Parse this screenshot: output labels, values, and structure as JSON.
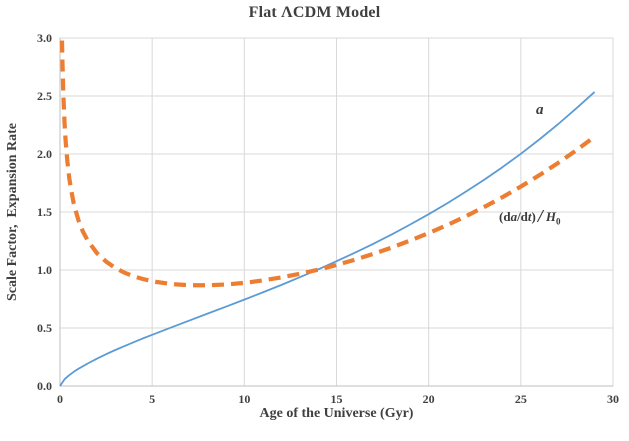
{
  "page": {
    "background": "#FFFFFF"
  },
  "chart_data": {
    "type": "line",
    "title": "Flat ΛCDM Model",
    "xlabel": "Age of the Universe (Gyr)",
    "ylabel": "Scale Factor,  Expansion Rate",
    "xlim": [
      0,
      30
    ],
    "ylim": [
      0,
      3
    ],
    "grid": true,
    "legend": "none",
    "colors": {
      "grid": "#D9D9D9",
      "axis": "#BFBFBF",
      "text": "#404040"
    },
    "x_ticks": [
      {
        "v": 0,
        "label": "0"
      },
      {
        "v": 5,
        "label": "5"
      },
      {
        "v": 10,
        "label": "10"
      },
      {
        "v": 15,
        "label": "15"
      },
      {
        "v": 20,
        "label": "20"
      },
      {
        "v": 25,
        "label": "25"
      },
      {
        "v": 30,
        "label": "30"
      }
    ],
    "y_ticks": [
      {
        "v": 0.0,
        "label": "0.0"
      },
      {
        "v": 0.5,
        "label": "0.5"
      },
      {
        "v": 1.0,
        "label": "1.0"
      },
      {
        "v": 1.5,
        "label": "1.5"
      },
      {
        "v": 2.0,
        "label": "2.0"
      },
      {
        "v": 2.5,
        "label": "2.5"
      },
      {
        "v": 3.0,
        "label": "3.0"
      }
    ],
    "series": [
      {
        "name": "a",
        "color": "#5B9BD5",
        "line_style": "solid",
        "points": [
          [
            0,
            0
          ],
          [
            0.25,
            0.059
          ],
          [
            0.5,
            0.093
          ],
          [
            0.75,
            0.122
          ],
          [
            1,
            0.148
          ],
          [
            1.5,
            0.194
          ],
          [
            2,
            0.235
          ],
          [
            2.5,
            0.274
          ],
          [
            3,
            0.31
          ],
          [
            3.5,
            0.344
          ],
          [
            4,
            0.378
          ],
          [
            4.5,
            0.41
          ],
          [
            5,
            0.441
          ],
          [
            6,
            0.503
          ],
          [
            7,
            0.563
          ],
          [
            8,
            0.624
          ],
          [
            9,
            0.684
          ],
          [
            10,
            0.745
          ],
          [
            11,
            0.807
          ],
          [
            12,
            0.871
          ],
          [
            13,
            0.937
          ],
          [
            14,
            1.005
          ],
          [
            15,
            1.076
          ],
          [
            16,
            1.149
          ],
          [
            17,
            1.226
          ],
          [
            18,
            1.307
          ],
          [
            19,
            1.392
          ],
          [
            20,
            1.481
          ],
          [
            21,
            1.574
          ],
          [
            22,
            1.673
          ],
          [
            23,
            1.777
          ],
          [
            24,
            1.886
          ],
          [
            25,
            2.002
          ],
          [
            26,
            2.125
          ],
          [
            27,
            2.254
          ],
          [
            28,
            2.391
          ],
          [
            29,
            2.535
          ]
        ]
      },
      {
        "name": "(da/dt) / H0",
        "color": "#ED7D31",
        "line_style": "dashed",
        "points": [
          [
            0.11,
            2.978
          ],
          [
            0.13,
            2.815
          ],
          [
            0.15,
            2.684
          ],
          [
            0.175,
            2.547
          ],
          [
            0.2,
            2.437
          ],
          [
            0.25,
            2.261
          ],
          [
            0.3,
            2.128
          ],
          [
            0.35,
            2.022
          ],
          [
            0.4,
            1.934
          ],
          [
            0.5,
            1.796
          ],
          [
            0.6,
            1.692
          ],
          [
            0.75,
            1.571
          ],
          [
            1,
            1.429
          ],
          [
            1.25,
            1.329
          ],
          [
            1.5,
            1.254
          ],
          [
            2,
            1.146
          ],
          [
            2.5,
            1.072
          ],
          [
            3,
            1.018
          ],
          [
            3.5,
            0.977
          ],
          [
            4,
            0.946
          ],
          [
            4.5,
            0.922
          ],
          [
            5,
            0.903
          ],
          [
            6,
            0.879
          ],
          [
            7,
            0.869
          ],
          [
            8,
            0.868
          ],
          [
            9,
            0.875
          ],
          [
            10,
            0.889
          ],
          [
            11,
            0.91
          ],
          [
            12,
            0.936
          ],
          [
            13,
            0.967
          ],
          [
            14,
            1.003
          ],
          [
            15,
            1.043
          ],
          [
            16,
            1.089
          ],
          [
            17,
            1.139
          ],
          [
            18,
            1.194
          ],
          [
            19,
            1.254
          ],
          [
            20,
            1.318
          ],
          [
            21,
            1.387
          ],
          [
            22,
            1.462
          ],
          [
            23,
            1.542
          ],
          [
            24,
            1.628
          ],
          [
            25,
            1.719
          ],
          [
            26,
            1.817
          ],
          [
            27,
            1.921
          ],
          [
            28,
            2.031
          ],
          [
            29,
            2.149
          ]
        ]
      }
    ],
    "curve_labels": {
      "a": "a",
      "deriv_parts": {
        "open": "(d",
        "a": "a",
        "mid": "/d",
        "t": "t",
        "close": ")",
        "slash": "/",
        "H": "H",
        "sub": "0"
      }
    }
  }
}
